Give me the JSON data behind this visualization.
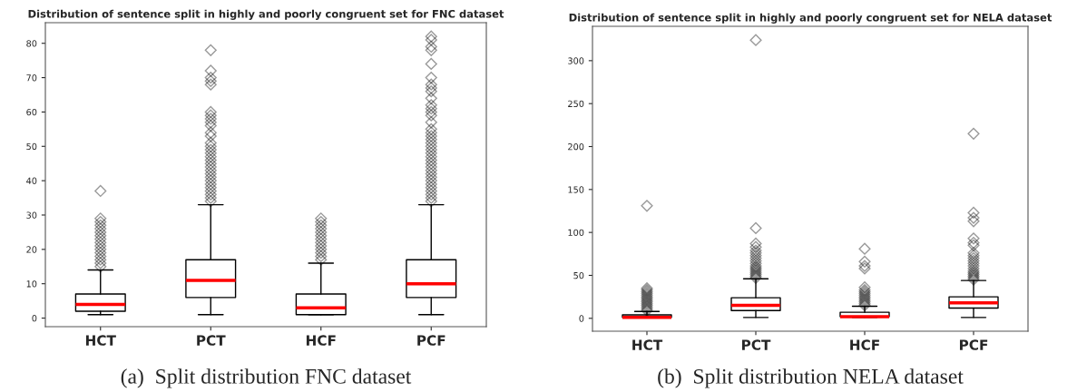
{
  "chart_data": [
    {
      "type": "box",
      "title": "Distribution of sentence split in highly and poorly congruent set for FNC dataset",
      "categories": [
        "HCT",
        "PCT",
        "HCF",
        "PCF"
      ],
      "ylim": [
        -2.5,
        86
      ],
      "yticks": [
        0,
        10,
        20,
        30,
        40,
        50,
        60,
        70,
        80
      ],
      "grid": false,
      "marker": "diamond",
      "annotations": [
        "(a)  Split distribution FNC dataset"
      ],
      "boxes": [
        {
          "low": 1,
          "q1": 2,
          "median": 4,
          "q3": 7,
          "high": 14,
          "outliers": [
            15,
            16,
            17,
            18,
            19,
            20,
            21,
            22,
            23,
            24,
            25,
            26,
            27,
            28,
            29,
            37
          ]
        },
        {
          "low": 1,
          "q1": 6,
          "median": 11,
          "q3": 17,
          "high": 33,
          "outliers": [
            34,
            35,
            36,
            37,
            38,
            39,
            40,
            41,
            42,
            43,
            44,
            45,
            46,
            47,
            48,
            49,
            50,
            51,
            53,
            54,
            56,
            57,
            58,
            59,
            60,
            68,
            69,
            70,
            72,
            78
          ]
        },
        {
          "low": 1,
          "q1": 1,
          "median": 3,
          "q3": 7,
          "high": 16,
          "outliers": [
            17,
            18,
            19,
            20,
            21,
            22,
            23,
            24,
            25,
            26,
            27,
            28,
            29
          ]
        },
        {
          "low": 1,
          "q1": 6,
          "median": 10,
          "q3": 17,
          "high": 33,
          "outliers": [
            34,
            35,
            36,
            37,
            38,
            39,
            40,
            41,
            42,
            43,
            44,
            45,
            46,
            47,
            48,
            49,
            50,
            51,
            52,
            53,
            54,
            55,
            57,
            59,
            60,
            61,
            62,
            64,
            66,
            67,
            68,
            70,
            74,
            78,
            79,
            81,
            82
          ]
        }
      ]
    },
    {
      "type": "box",
      "title": "Distribution of sentence split in highly and poorly congruent set for NELA dataset",
      "categories": [
        "HCT",
        "PCT",
        "HCF",
        "PCF"
      ],
      "ylim": [
        -15,
        340
      ],
      "yticks": [
        0,
        50,
        100,
        150,
        200,
        250,
        300
      ],
      "grid": false,
      "marker": "diamond",
      "annotations": [
        "(b)  Split distribution NELA dataset"
      ],
      "boxes": [
        {
          "low": 1,
          "q1": 1,
          "median": 1,
          "q3": 4,
          "high": 8,
          "outliers": [
            9,
            11,
            13,
            15,
            17,
            19,
            21,
            23,
            25,
            27,
            29,
            31,
            33,
            35,
            131
          ]
        },
        {
          "low": 1,
          "q1": 9,
          "median": 15,
          "q3": 24,
          "high": 46,
          "outliers": [
            47,
            49,
            51,
            53,
            55,
            57,
            59,
            61,
            64,
            67,
            70,
            73,
            76,
            79,
            83,
            87,
            105,
            324
          ]
        },
        {
          "low": 1,
          "q1": 2,
          "median": 2,
          "q3": 7,
          "high": 14,
          "outliers": [
            15,
            17,
            19,
            21,
            23,
            25,
            27,
            29,
            31,
            33,
            36,
            58,
            61,
            66,
            81
          ]
        },
        {
          "low": 1,
          "q1": 12,
          "median": 18,
          "q3": 25,
          "high": 44,
          "outliers": [
            45,
            47,
            49,
            51,
            53,
            55,
            58,
            61,
            64,
            67,
            70,
            73,
            76,
            85,
            88,
            93,
            113,
            117,
            123,
            215
          ]
        }
      ]
    }
  ]
}
